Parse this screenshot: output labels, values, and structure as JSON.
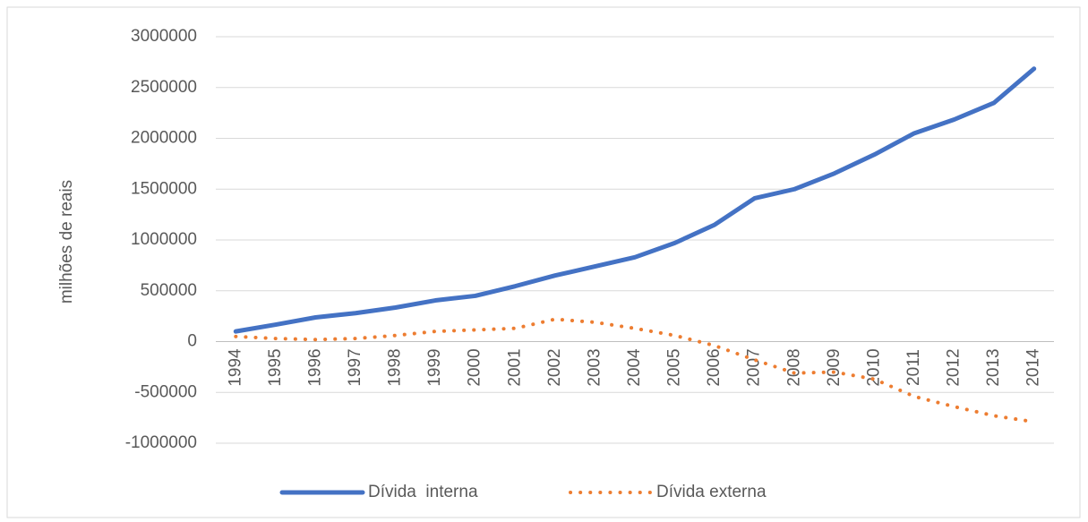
{
  "chart_data": {
    "type": "line",
    "ylabel": "milhões de reais",
    "categories": [
      "1994",
      "1995",
      "1996",
      "1997",
      "1998",
      "1999",
      "2000",
      "2001",
      "2002",
      "2003",
      "2004",
      "2005",
      "2006",
      "2007",
      "2008",
      "2009",
      "2010",
      "2011",
      "2012",
      "2013",
      "2014"
    ],
    "series": [
      {
        "name": "Dívida  interna",
        "color": "#4472c4",
        "style": "solid",
        "values": [
          100000,
          167000,
          238000,
          280000,
          335000,
          405000,
          450000,
          545000,
          650000,
          740000,
          830000,
          970000,
          1150000,
          1410000,
          1500000,
          1655000,
          1840000,
          2050000,
          2185000,
          2350000,
          2685000
        ]
      },
      {
        "name": "Dívida externa",
        "color": "#ed7d31",
        "style": "dotted",
        "values": [
          50000,
          30000,
          20000,
          30000,
          60000,
          100000,
          115000,
          130000,
          220000,
          190000,
          130000,
          60000,
          -40000,
          -180000,
          -310000,
          -300000,
          -370000,
          -540000,
          -640000,
          -730000,
          -790000
        ]
      }
    ],
    "ylim": [
      -1000000,
      3000000
    ],
    "yticks": [
      -1000000,
      -500000,
      0,
      500000,
      1000000,
      1500000,
      2000000,
      2500000,
      3000000
    ],
    "grid": true,
    "legend": "bottom"
  }
}
